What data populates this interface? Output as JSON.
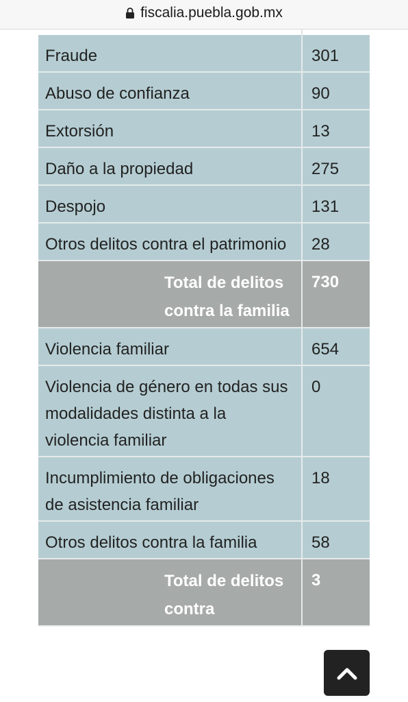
{
  "browser": {
    "url": "fiscalia.puebla.gob.mx"
  },
  "table": {
    "rows": [
      {
        "type": "data",
        "label": "Fraude",
        "value": "301"
      },
      {
        "type": "data",
        "label": "Abuso de confianza",
        "value": "90"
      },
      {
        "type": "data",
        "label": "Extorsión",
        "value": "13"
      },
      {
        "type": "data",
        "label": "Daño a la propiedad",
        "value": "275"
      },
      {
        "type": "data",
        "label": "Despojo",
        "value": "131"
      },
      {
        "type": "data",
        "label": "Otros delitos contra el patrimonio",
        "value": "28"
      },
      {
        "type": "total",
        "label": "Total de delitos contra la familia",
        "value": "730"
      },
      {
        "type": "data",
        "label": "Violencia familiar",
        "value": "654"
      },
      {
        "type": "data",
        "label": "Violencia de género en todas sus modalidades distinta a la violencia familiar",
        "value": "0"
      },
      {
        "type": "data",
        "label": "Incumplimiento de obligaciones de asistencia familiar",
        "value": "18"
      },
      {
        "type": "data",
        "label": "Otros delitos contra la familia",
        "value": "58"
      },
      {
        "type": "total",
        "label": "Total de delitos contra",
        "value": "3"
      }
    ]
  },
  "icons": {
    "lock": "lock-icon",
    "scroll_top": "chevron-up-icon"
  },
  "colors": {
    "data_row": "#b5cdd2",
    "total_row": "#a6aaa9",
    "scroll_button": "#222222"
  }
}
